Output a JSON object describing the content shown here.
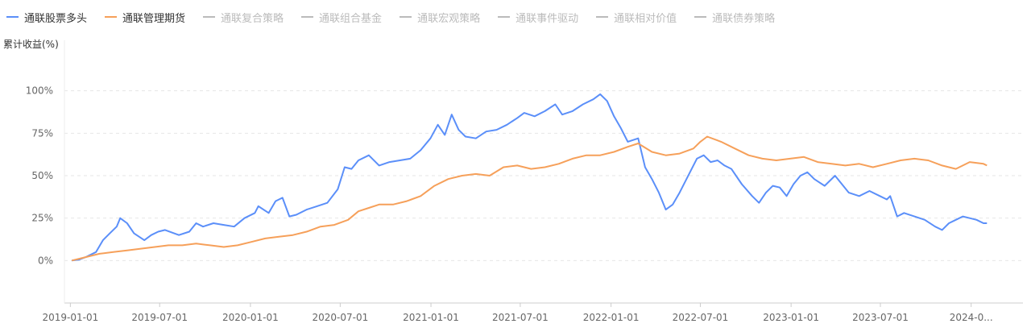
{
  "chart_data": {
    "type": "line",
    "ylabel": "累计收益(%)",
    "ylim": [
      -25,
      125
    ],
    "yticks": [
      "0%",
      "25%",
      "50%",
      "75%",
      "100%"
    ],
    "ytick_values": [
      0,
      25,
      50,
      75,
      100
    ],
    "xlim": [
      "2018-12-20",
      "2024-04-15"
    ],
    "xticks": [
      "2019-01-01",
      "2019-07-01",
      "2020-01-01",
      "2020-07-01",
      "2021-01-01",
      "2021-07-01",
      "2022-01-01",
      "2022-07-01",
      "2023-01-01",
      "2023-07-01",
      "2024-0..."
    ],
    "xtick_dates": [
      "2019-01-01",
      "2019-07-01",
      "2020-01-01",
      "2020-07-01",
      "2021-01-01",
      "2021-07-01",
      "2022-01-01",
      "2022-07-01",
      "2023-01-01",
      "2023-07-01",
      "2024-01-01"
    ],
    "grid": "horizontal dashed",
    "legend_position": "top-left",
    "series": [
      {
        "name": "通联股票多头",
        "color": "#5B8FF9",
        "active": true,
        "points": [
          [
            "2019-01-04",
            0
          ],
          [
            "2019-01-18",
            0.5
          ],
          [
            "2019-02-01",
            2
          ],
          [
            "2019-02-22",
            5
          ],
          [
            "2019-03-08",
            12
          ],
          [
            "2019-03-22",
            16
          ],
          [
            "2019-04-05",
            20
          ],
          [
            "2019-04-12",
            25
          ],
          [
            "2019-04-26",
            22
          ],
          [
            "2019-05-10",
            16
          ],
          [
            "2019-05-31",
            12
          ],
          [
            "2019-06-14",
            15
          ],
          [
            "2019-06-28",
            17
          ],
          [
            "2019-07-12",
            18
          ],
          [
            "2019-08-09",
            15
          ],
          [
            "2019-08-30",
            17
          ],
          [
            "2019-09-13",
            22
          ],
          [
            "2019-09-27",
            20
          ],
          [
            "2019-10-18",
            22
          ],
          [
            "2019-11-08",
            21
          ],
          [
            "2019-11-29",
            20
          ],
          [
            "2019-12-20",
            25
          ],
          [
            "2020-01-10",
            28
          ],
          [
            "2020-01-17",
            32
          ],
          [
            "2020-02-07",
            28
          ],
          [
            "2020-02-21",
            35
          ],
          [
            "2020-03-06",
            37
          ],
          [
            "2020-03-20",
            26
          ],
          [
            "2020-04-03",
            27
          ],
          [
            "2020-04-24",
            30
          ],
          [
            "2020-05-15",
            32
          ],
          [
            "2020-06-05",
            34
          ],
          [
            "2020-06-26",
            42
          ],
          [
            "2020-07-10",
            55
          ],
          [
            "2020-07-24",
            54
          ],
          [
            "2020-08-07",
            59
          ],
          [
            "2020-08-28",
            62
          ],
          [
            "2020-09-18",
            56
          ],
          [
            "2020-10-09",
            58
          ],
          [
            "2020-10-30",
            59
          ],
          [
            "2020-11-20",
            60
          ],
          [
            "2020-12-11",
            65
          ],
          [
            "2020-12-31",
            72
          ],
          [
            "2021-01-15",
            80
          ],
          [
            "2021-01-29",
            74
          ],
          [
            "2021-02-12",
            86
          ],
          [
            "2021-02-26",
            77
          ],
          [
            "2021-03-12",
            73
          ],
          [
            "2021-04-02",
            72
          ],
          [
            "2021-04-23",
            76
          ],
          [
            "2021-05-14",
            77
          ],
          [
            "2021-06-04",
            80
          ],
          [
            "2021-06-25",
            84
          ],
          [
            "2021-07-09",
            87
          ],
          [
            "2021-07-30",
            85
          ],
          [
            "2021-08-20",
            88
          ],
          [
            "2021-09-10",
            92
          ],
          [
            "2021-09-24",
            86
          ],
          [
            "2021-10-15",
            88
          ],
          [
            "2021-11-05",
            92
          ],
          [
            "2021-11-26",
            95
          ],
          [
            "2021-12-10",
            98
          ],
          [
            "2021-12-24",
            94
          ],
          [
            "2022-01-07",
            85
          ],
          [
            "2022-01-21",
            78
          ],
          [
            "2022-02-04",
            70
          ],
          [
            "2022-02-25",
            72
          ],
          [
            "2022-03-11",
            55
          ],
          [
            "2022-03-25",
            48
          ],
          [
            "2022-04-08",
            40
          ],
          [
            "2022-04-22",
            30
          ],
          [
            "2022-05-06",
            33
          ],
          [
            "2022-05-20",
            40
          ],
          [
            "2022-06-03",
            48
          ],
          [
            "2022-06-24",
            60
          ],
          [
            "2022-07-08",
            62
          ],
          [
            "2022-07-22",
            58
          ],
          [
            "2022-08-05",
            59
          ],
          [
            "2022-08-19",
            56
          ],
          [
            "2022-09-02",
            54
          ],
          [
            "2022-09-23",
            45
          ],
          [
            "2022-10-14",
            38
          ],
          [
            "2022-10-28",
            34
          ],
          [
            "2022-11-11",
            40
          ],
          [
            "2022-11-25",
            44
          ],
          [
            "2022-12-09",
            43
          ],
          [
            "2022-12-23",
            38
          ],
          [
            "2023-01-06",
            45
          ],
          [
            "2023-01-20",
            50
          ],
          [
            "2023-02-03",
            52
          ],
          [
            "2023-02-17",
            48
          ],
          [
            "2023-03-10",
            44
          ],
          [
            "2023-03-31",
            50
          ],
          [
            "2023-04-14",
            45
          ],
          [
            "2023-04-28",
            40
          ],
          [
            "2023-05-19",
            38
          ],
          [
            "2023-06-09",
            41
          ],
          [
            "2023-06-30",
            38
          ],
          [
            "2023-07-14",
            36
          ],
          [
            "2023-07-21",
            38
          ],
          [
            "2023-08-04",
            26
          ],
          [
            "2023-08-18",
            28
          ],
          [
            "2023-09-08",
            26
          ],
          [
            "2023-09-29",
            24
          ],
          [
            "2023-10-20",
            20
          ],
          [
            "2023-11-03",
            18
          ],
          [
            "2023-11-17",
            22
          ],
          [
            "2023-12-01",
            24
          ],
          [
            "2023-12-15",
            26
          ],
          [
            "2023-12-29",
            25
          ],
          [
            "2024-01-12",
            24
          ],
          [
            "2024-01-26",
            22
          ],
          [
            "2024-02-02",
            22
          ]
        ]
      },
      {
        "name": "通联管理期货",
        "color": "#F6A05A",
        "active": true,
        "points": [
          [
            "2019-01-04",
            0
          ],
          [
            "2019-02-01",
            2
          ],
          [
            "2019-03-01",
            4
          ],
          [
            "2019-03-29",
            5
          ],
          [
            "2019-04-26",
            6
          ],
          [
            "2019-05-24",
            7
          ],
          [
            "2019-06-21",
            8
          ],
          [
            "2019-07-19",
            9
          ],
          [
            "2019-08-16",
            9
          ],
          [
            "2019-09-13",
            10
          ],
          [
            "2019-10-11",
            9
          ],
          [
            "2019-11-08",
            8
          ],
          [
            "2019-12-06",
            9
          ],
          [
            "2020-01-03",
            11
          ],
          [
            "2020-01-31",
            13
          ],
          [
            "2020-02-28",
            14
          ],
          [
            "2020-03-27",
            15
          ],
          [
            "2020-04-24",
            17
          ],
          [
            "2020-05-22",
            20
          ],
          [
            "2020-06-19",
            21
          ],
          [
            "2020-07-17",
            24
          ],
          [
            "2020-08-07",
            29
          ],
          [
            "2020-08-28",
            31
          ],
          [
            "2020-09-18",
            33
          ],
          [
            "2020-10-16",
            33
          ],
          [
            "2020-11-13",
            35
          ],
          [
            "2020-12-11",
            38
          ],
          [
            "2021-01-08",
            44
          ],
          [
            "2021-02-05",
            48
          ],
          [
            "2021-03-05",
            50
          ],
          [
            "2021-04-02",
            51
          ],
          [
            "2021-04-30",
            50
          ],
          [
            "2021-05-28",
            55
          ],
          [
            "2021-06-25",
            56
          ],
          [
            "2021-07-23",
            54
          ],
          [
            "2021-08-20",
            55
          ],
          [
            "2021-09-17",
            57
          ],
          [
            "2021-10-15",
            60
          ],
          [
            "2021-11-12",
            62
          ],
          [
            "2021-12-10",
            62
          ],
          [
            "2022-01-07",
            64
          ],
          [
            "2022-02-04",
            67
          ],
          [
            "2022-02-25",
            69
          ],
          [
            "2022-03-25",
            64
          ],
          [
            "2022-04-22",
            62
          ],
          [
            "2022-05-20",
            63
          ],
          [
            "2022-06-17",
            66
          ],
          [
            "2022-07-01",
            70
          ],
          [
            "2022-07-15",
            73
          ],
          [
            "2022-08-12",
            70
          ],
          [
            "2022-09-09",
            66
          ],
          [
            "2022-10-07",
            62
          ],
          [
            "2022-11-04",
            60
          ],
          [
            "2022-12-02",
            59
          ],
          [
            "2022-12-30",
            60
          ],
          [
            "2023-01-27",
            61
          ],
          [
            "2023-02-24",
            58
          ],
          [
            "2023-03-24",
            57
          ],
          [
            "2023-04-21",
            56
          ],
          [
            "2023-05-19",
            57
          ],
          [
            "2023-06-16",
            55
          ],
          [
            "2023-07-14",
            57
          ],
          [
            "2023-08-11",
            59
          ],
          [
            "2023-09-08",
            60
          ],
          [
            "2023-10-06",
            59
          ],
          [
            "2023-11-03",
            56
          ],
          [
            "2023-12-01",
            54
          ],
          [
            "2023-12-29",
            58
          ],
          [
            "2024-01-26",
            57
          ],
          [
            "2024-02-02",
            56
          ]
        ]
      },
      {
        "name": "通联复合策略",
        "color": "#C8C8C8",
        "active": false,
        "points": []
      },
      {
        "name": "通联组合基金",
        "color": "#C8C8C8",
        "active": false,
        "points": []
      },
      {
        "name": "通联宏观策略",
        "color": "#C8C8C8",
        "active": false,
        "points": []
      },
      {
        "name": "通联事件驱动",
        "color": "#C8C8C8",
        "active": false,
        "points": []
      },
      {
        "name": "通联相对价值",
        "color": "#C8C8C8",
        "active": false,
        "points": []
      },
      {
        "name": "通联债券策略",
        "color": "#C8C8C8",
        "active": false,
        "points": []
      }
    ]
  },
  "colors": {
    "active_legend_text": "#333333",
    "inactive_legend_text": "#BBBBBB",
    "axis": "#CCCCCC",
    "grid": "#E6E6E6"
  }
}
